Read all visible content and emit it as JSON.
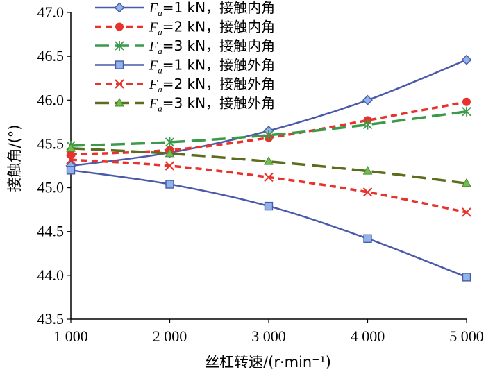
{
  "chart_data": {
    "type": "line",
    "title": "",
    "xlabel": "丝杠转速/(r·min⁻¹)",
    "ylabel": "接触角/(°)",
    "x": [
      1000,
      2000,
      3000,
      4000,
      5000
    ],
    "x_tick_labels": [
      "1 000",
      "2 000",
      "3 000",
      "4 000",
      "5 000"
    ],
    "ylim": [
      43.5,
      47.0
    ],
    "y_ticks": [
      43.5,
      44.0,
      44.5,
      45.0,
      45.5,
      46.0,
      46.5,
      47.0
    ],
    "y_tick_labels": [
      "43.5",
      "44.0",
      "44.5",
      "45.0",
      "45.5",
      "46.0",
      "46.5",
      "47.0"
    ],
    "legend_position": "top-left",
    "series": [
      {
        "name": "Fa=1 kN，接触内角",
        "load": "=1 kN，接触内角",
        "color": "#4a5aa8",
        "dash": "solid",
        "marker": "diamond",
        "values": [
          45.25,
          45.4,
          45.65,
          46.0,
          46.46
        ]
      },
      {
        "name": "Fa=2 kN，接触内角",
        "load": "=2 kN，接触内角",
        "color": "#e8322c",
        "dash": "dashed",
        "marker": "circle",
        "values": [
          45.38,
          45.43,
          45.57,
          45.77,
          45.98
        ]
      },
      {
        "name": "Fa=3 kN，接触内角",
        "load": "=3 kN，接触内角",
        "color": "#3a9a4a",
        "dash": "longdash",
        "marker": "star",
        "values": [
          45.48,
          45.52,
          45.6,
          45.72,
          45.87
        ]
      },
      {
        "name": "Fa=1 kN，接触外角",
        "load": "=1 kN，接触外角",
        "color": "#4a5aa8",
        "dash": "solid",
        "marker": "square",
        "values": [
          45.2,
          45.04,
          44.79,
          44.42,
          43.98
        ]
      },
      {
        "name": "Fa=2 kN，接触外角",
        "load": "=2 kN，接触外角",
        "color": "#e8322c",
        "dash": "dashed",
        "marker": "cross",
        "values": [
          45.32,
          45.25,
          45.12,
          44.95,
          44.72
        ]
      },
      {
        "name": "Fa=3 kN，接触外角",
        "load": "=3 kN，接触外角",
        "color": "#5a6e1e",
        "dash": "longdash",
        "marker": "triangle",
        "values": [
          45.45,
          45.39,
          45.3,
          45.19,
          45.05
        ]
      }
    ]
  }
}
